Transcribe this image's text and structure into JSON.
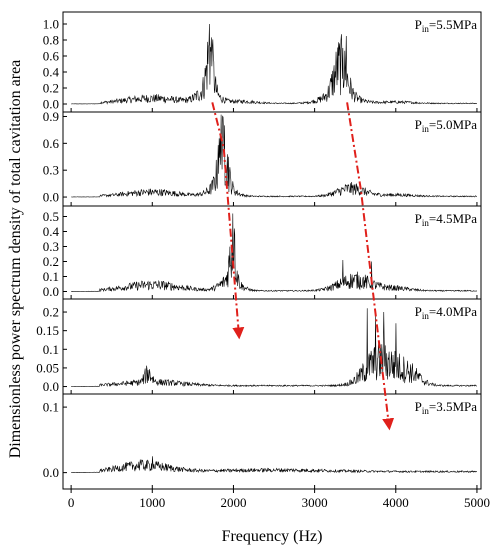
{
  "figure": {
    "ylabel": "Dimensionless power spectrum density of total cavitation area",
    "xlabel": "Frequency (Hz)",
    "trend_line_color": "#e0201b",
    "trace_color": "#000000"
  },
  "chart_data": [
    {
      "type": "line",
      "label": {
        "main": "P",
        "sub": "in",
        "value": "=5.5MPa"
      },
      "xlim": [
        -100,
        5050
      ],
      "ylim": [
        -0.1,
        1.15
      ],
      "yticks": [
        0.0,
        0.2,
        0.4,
        0.6,
        0.8,
        1.0
      ],
      "ytick_labels": [
        "0.0",
        "0.2",
        "0.4",
        "0.6",
        "0.8",
        "1.0"
      ],
      "noise_floor": 0.01,
      "peaks": [
        {
          "f": 1000,
          "w": 480,
          "a": 0.08
        },
        {
          "f": 1710,
          "w": 55,
          "a": 0.6
        },
        {
          "f": 1680,
          "w": 160,
          "a": 0.2
        },
        {
          "f": 2100,
          "w": 250,
          "a": 0.03
        },
        {
          "f": 3320,
          "w": 110,
          "a": 0.48
        },
        {
          "f": 3300,
          "w": 260,
          "a": 0.14
        },
        {
          "f": 4000,
          "w": 300,
          "a": 0.02
        }
      ],
      "spikes": [
        {
          "f": 1705,
          "a": 1.0
        },
        {
          "f": 3390,
          "a": 0.85
        },
        {
          "f": 1740,
          "a": 0.72
        },
        {
          "f": 3350,
          "a": 0.7
        }
      ]
    },
    {
      "type": "line",
      "label": {
        "main": "P",
        "sub": "in",
        "value": "=5.0MPa"
      },
      "xlim": [
        -100,
        5050
      ],
      "ylim": [
        -0.1,
        0.95
      ],
      "yticks": [
        0.0,
        0.3,
        0.6,
        0.9
      ],
      "ytick_labels": [
        "0.0",
        "0.3",
        "0.6",
        "0.9"
      ],
      "noise_floor": 0.01,
      "peaks": [
        {
          "f": 1000,
          "w": 450,
          "a": 0.06
        },
        {
          "f": 1870,
          "w": 75,
          "a": 0.5
        },
        {
          "f": 1850,
          "w": 180,
          "a": 0.16
        },
        {
          "f": 3450,
          "w": 230,
          "a": 0.11
        },
        {
          "f": 4000,
          "w": 300,
          "a": 0.02
        }
      ],
      "spikes": [
        {
          "f": 1850,
          "a": 0.92
        },
        {
          "f": 1890,
          "a": 0.8
        },
        {
          "f": 1810,
          "a": 0.58
        },
        {
          "f": 1940,
          "a": 0.45
        }
      ]
    },
    {
      "type": "line",
      "label": {
        "main": "P",
        "sub": "in",
        "value": "=4.5MPa"
      },
      "xlim": [
        -100,
        5050
      ],
      "ylim": [
        -0.05,
        0.57
      ],
      "yticks": [
        0.0,
        0.1,
        0.2,
        0.3,
        0.4,
        0.5
      ],
      "ytick_labels": [
        "0.0",
        "0.1",
        "0.2",
        "0.3",
        "0.4",
        "0.5"
      ],
      "noise_floor": 0.006,
      "peaks": [
        {
          "f": 1000,
          "w": 480,
          "a": 0.05
        },
        {
          "f": 1990,
          "w": 50,
          "a": 0.28
        },
        {
          "f": 1960,
          "w": 160,
          "a": 0.09
        },
        {
          "f": 3500,
          "w": 280,
          "a": 0.09
        },
        {
          "f": 4000,
          "w": 250,
          "a": 0.02
        }
      ],
      "spikes": [
        {
          "f": 1990,
          "a": 0.52
        },
        {
          "f": 2010,
          "a": 0.42
        },
        {
          "f": 3700,
          "a": 0.2
        },
        {
          "f": 3350,
          "a": 0.21
        }
      ]
    },
    {
      "type": "line",
      "label": {
        "main": "P",
        "sub": "in",
        "value": "=4.0MPa"
      },
      "xlim": [
        -100,
        5050
      ],
      "ylim": [
        -0.02,
        0.235
      ],
      "yticks": [
        0.0,
        0.05,
        0.1,
        0.15,
        0.2
      ],
      "ytick_labels": [
        "0.0",
        "0.05",
        "0.1",
        "0.15",
        "0.2"
      ],
      "noise_floor": 0.003,
      "peaks": [
        {
          "f": 1000,
          "w": 500,
          "a": 0.012
        },
        {
          "f": 950,
          "w": 60,
          "a": 0.03
        },
        {
          "f": 3800,
          "w": 250,
          "a": 0.085
        },
        {
          "f": 4150,
          "w": 200,
          "a": 0.04
        }
      ],
      "spikes": [
        {
          "f": 3650,
          "a": 0.21
        },
        {
          "f": 3850,
          "a": 0.2
        },
        {
          "f": 4000,
          "a": 0.17
        },
        {
          "f": 3750,
          "a": 0.19
        }
      ]
    },
    {
      "type": "line",
      "label": {
        "main": "P",
        "sub": "in",
        "value": "=3.5MPa"
      },
      "xlim": [
        -100,
        5050
      ],
      "ylim": [
        -0.025,
        0.12
      ],
      "yticks": [
        0.0,
        0.1
      ],
      "ytick_labels": [
        "0.0",
        "0.1"
      ],
      "noise_floor": 0.002,
      "peaks": [
        {
          "f": 900,
          "w": 420,
          "a": 0.012
        },
        {
          "f": 2500,
          "w": 900,
          "a": 0.003
        }
      ],
      "spikes": [
        {
          "f": 1000,
          "a": 0.025
        },
        {
          "f": 850,
          "a": 0.02
        }
      ]
    }
  ],
  "xaxis": {
    "xlim": [
      -100,
      5050
    ],
    "ticks": [
      0,
      1000,
      2000,
      3000,
      4000,
      5000
    ],
    "tick_labels": [
      "0",
      "1000",
      "2000",
      "3000",
      "4000",
      "5000"
    ]
  },
  "trend_lines": [
    {
      "points": [
        [
          1740,
          0.02
        ],
        [
          1880,
          0.55
        ],
        [
          2070,
          0.02
        ]
      ]
    },
    {
      "points": [
        [
          3400,
          0.02
        ],
        [
          3570,
          0.08
        ],
        [
          3720,
          0.25
        ],
        [
          3920,
          0.08
        ]
      ]
    }
  ]
}
